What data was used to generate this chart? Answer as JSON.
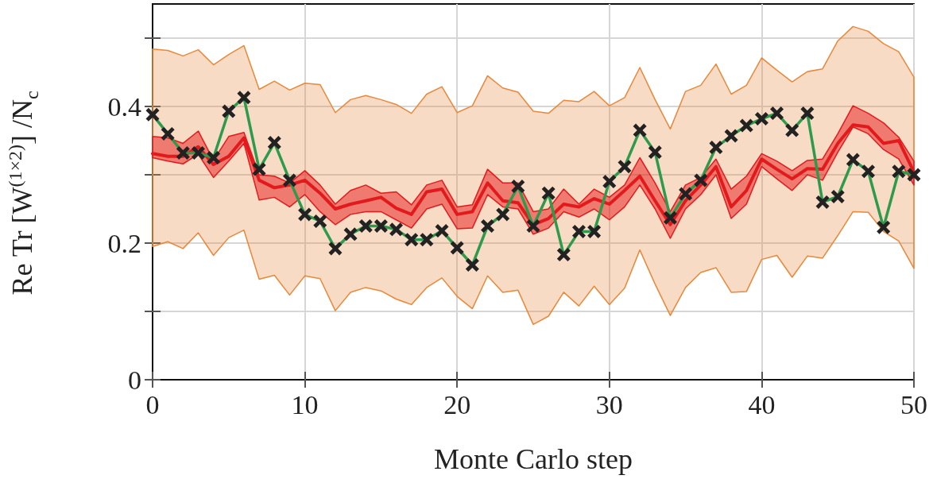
{
  "chart_data": {
    "type": "line",
    "xlabel": "Monte Carlo step",
    "ylabel": "Re Tr [W$^{(1×2)}$] /N$_{c}$",
    "x": [
      0,
      1,
      2,
      3,
      4,
      5,
      6,
      7,
      8,
      9,
      10,
      11,
      12,
      13,
      14,
      15,
      16,
      17,
      18,
      19,
      20,
      21,
      22,
      23,
      24,
      25,
      26,
      27,
      28,
      29,
      30,
      31,
      32,
      33,
      34,
      35,
      36,
      37,
      38,
      39,
      40,
      41,
      42,
      43,
      44,
      45,
      46,
      47,
      48,
      49,
      50
    ],
    "xlim": [
      0,
      50
    ],
    "xticks": [
      0,
      10,
      20,
      30,
      40,
      50
    ],
    "ylim": [
      0,
      0.55
    ],
    "yticks": [
      0,
      {
        "value": 0.1,
        "label": null
      },
      0.2,
      {
        "value": 0.3,
        "label": null
      },
      0.4,
      {
        "value": 0.5,
        "label": null
      }
    ],
    "grid": true,
    "marker": "none",
    "line_style": "solid",
    "series": [
      {
        "color": "#e8883a",
        "values": [
          null,
          null,
          null,
          null,
          null,
          null,
          null,
          null,
          null,
          null,
          null,
          null,
          null,
          null,
          null,
          null,
          null,
          null,
          null,
          null,
          null,
          null,
          null,
          null,
          null,
          null,
          null,
          null,
          null,
          null,
          null,
          null,
          null,
          null,
          null,
          null,
          null,
          null,
          null,
          null,
          null,
          null,
          null,
          null,
          null,
          null,
          null,
          null,
          null,
          null,
          null
        ],
        "lower": [
          0.195,
          0.202,
          0.192,
          0.215,
          0.182,
          0.208,
          0.219,
          0.147,
          0.153,
          0.124,
          0.152,
          0.148,
          0.101,
          0.128,
          0.135,
          0.13,
          0.118,
          0.11,
          0.135,
          0.149,
          0.122,
          0.104,
          0.152,
          0.128,
          0.131,
          0.081,
          0.093,
          0.128,
          0.108,
          0.137,
          0.11,
          0.134,
          0.19,
          0.14,
          0.094,
          0.135,
          0.157,
          0.164,
          0.128,
          0.129,
          0.176,
          0.182,
          0.15,
          0.181,
          0.178,
          0.211,
          0.246,
          0.245,
          0.217,
          0.203,
          0.163
        ],
        "upper": [
          0.484,
          0.482,
          0.474,
          0.483,
          0.461,
          0.476,
          0.489,
          0.425,
          0.437,
          0.424,
          0.434,
          0.432,
          0.391,
          0.41,
          0.416,
          0.41,
          0.403,
          0.39,
          0.418,
          0.429,
          0.391,
          0.401,
          0.445,
          0.427,
          0.421,
          0.393,
          0.39,
          0.409,
          0.407,
          0.422,
          0.401,
          0.413,
          0.457,
          0.41,
          0.367,
          0.422,
          0.431,
          0.462,
          0.418,
          0.431,
          0.471,
          0.453,
          0.436,
          0.451,
          0.455,
          0.496,
          0.517,
          0.51,
          0.492,
          0.48,
          0.443
        ]
      },
      {
        "color": "#e31a1c",
        "values": [
          0.331,
          0.327,
          0.327,
          0.341,
          0.315,
          0.327,
          0.354,
          0.292,
          0.281,
          0.285,
          0.292,
          0.273,
          0.25,
          0.257,
          0.262,
          0.267,
          0.251,
          0.242,
          0.275,
          0.279,
          0.242,
          0.246,
          0.288,
          0.262,
          0.259,
          0.227,
          0.236,
          0.257,
          0.253,
          0.265,
          0.257,
          0.277,
          0.298,
          0.262,
          0.227,
          0.262,
          0.285,
          0.312,
          0.253,
          0.277,
          0.323,
          0.308,
          0.294,
          0.309,
          0.308,
          0.346,
          0.373,
          0.37,
          0.346,
          0.35,
          0.304
        ],
        "lower": [
          0.325,
          0.32,
          0.316,
          0.33,
          0.296,
          0.32,
          0.346,
          0.263,
          0.267,
          0.253,
          0.271,
          0.246,
          0.227,
          0.242,
          0.246,
          0.246,
          0.234,
          0.222,
          0.25,
          0.257,
          0.221,
          0.222,
          0.271,
          0.253,
          0.25,
          0.213,
          0.222,
          0.246,
          0.238,
          0.25,
          0.234,
          0.253,
          0.285,
          0.25,
          0.207,
          0.25,
          0.271,
          0.3,
          0.236,
          0.257,
          0.312,
          0.294,
          0.277,
          0.3,
          0.292,
          0.333,
          0.37,
          0.36,
          0.337,
          0.323,
          0.285
        ],
        "upper": [
          0.356,
          0.354,
          0.346,
          0.364,
          0.321,
          0.356,
          0.362,
          0.3,
          0.298,
          0.288,
          0.306,
          0.285,
          0.257,
          0.277,
          0.285,
          0.273,
          0.275,
          0.256,
          0.285,
          0.292,
          0.253,
          0.256,
          0.308,
          0.288,
          0.288,
          0.246,
          0.25,
          0.279,
          0.257,
          0.279,
          0.267,
          0.285,
          0.325,
          0.288,
          0.246,
          0.285,
          0.296,
          0.323,
          0.279,
          0.298,
          0.331,
          0.32,
          0.306,
          0.321,
          0.323,
          0.36,
          0.401,
          0.39,
          0.376,
          0.355,
          0.32
        ]
      },
      {
        "color": "#2e9a4c",
        "marker": "cross",
        "values": [
          0.388,
          0.36,
          0.332,
          0.332,
          0.325,
          0.393,
          0.413,
          0.308,
          0.347,
          0.292,
          0.242,
          0.232,
          0.192,
          0.213,
          0.225,
          0.225,
          0.22,
          0.205,
          0.205,
          0.218,
          0.193,
          0.168,
          0.225,
          0.242,
          0.283,
          0.225,
          0.273,
          0.183,
          0.217,
          0.217,
          0.29,
          0.312,
          0.365,
          0.333,
          0.237,
          0.272,
          0.292,
          0.34,
          0.357,
          0.372,
          0.382,
          0.39,
          0.365,
          0.39,
          0.26,
          0.268,
          0.322,
          0.305,
          0.223,
          0.305,
          0.3
        ]
      }
    ]
  }
}
